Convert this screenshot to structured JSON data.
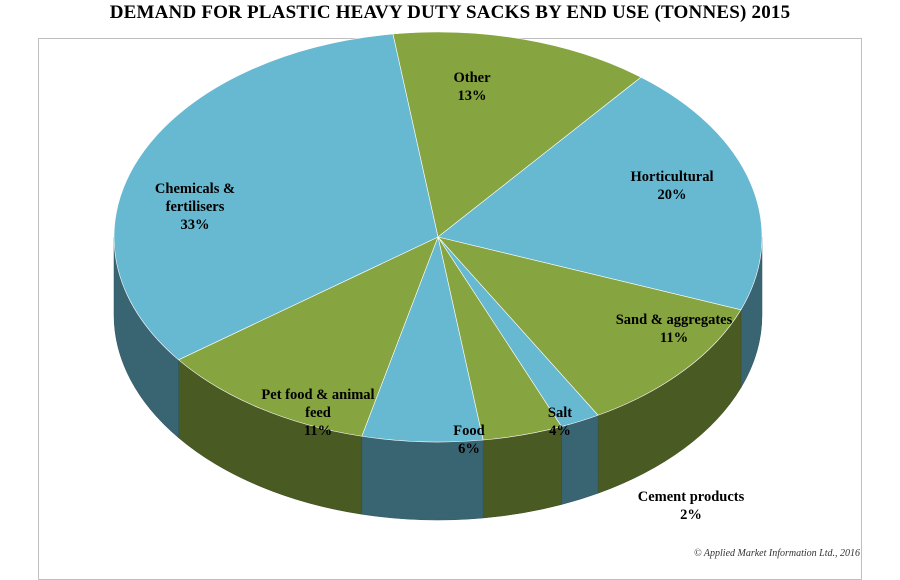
{
  "chart_data": {
    "type": "pie",
    "title": "DEMAND FOR PLASTIC HEAVY DUTY SACKS BY END USE (TONNES) 2015",
    "slices": [
      {
        "name": "Other",
        "value": 13,
        "label": "13%",
        "color": "#86a43f"
      },
      {
        "name": "Horticultural",
        "value": 20,
        "label": "20%",
        "color": "#67b8d1"
      },
      {
        "name": "Sand & aggregates",
        "value": 11,
        "label": "11%",
        "color": "#86a43f"
      },
      {
        "name": "Cement products",
        "value": 2,
        "label": "2%",
        "color": "#67b8d1"
      },
      {
        "name": "Salt",
        "value": 4,
        "label": "4%",
        "color": "#86a43f"
      },
      {
        "name": "Food",
        "value": 6,
        "label": "6%",
        "color": "#67b8d1"
      },
      {
        "name": "Pet food & animal feed",
        "value": 11,
        "label": "11%",
        "color": "#86a43f"
      },
      {
        "name": "Chemicals & fertilisers",
        "value": 33,
        "label": "33%",
        "color": "#67b8d1"
      }
    ],
    "style": "3d-pie",
    "legend": "none"
  },
  "footer": {
    "copyright": "© Applied Market Information Ltd., 2016"
  }
}
